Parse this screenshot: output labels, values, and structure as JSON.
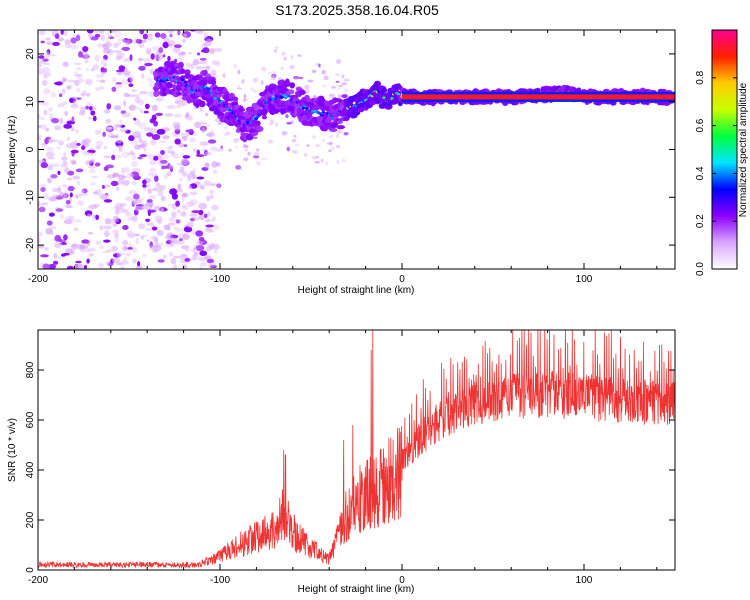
{
  "figure_title": "S173.2025.358.16.04.R05",
  "chart_data": [
    {
      "type": "heatmap",
      "title": "S173.2025.358.16.04.R05",
      "xlabel": "Height of straight line (km)",
      "ylabel": "Frequency (Hz)",
      "xlim": [
        -200,
        150
      ],
      "ylim": [
        -25,
        25
      ],
      "xticks": [
        -200,
        -100,
        0,
        100
      ],
      "yticks": [
        -20,
        -10,
        0,
        10,
        20
      ],
      "colorbar": {
        "label": "Normalized spectral amplitude",
        "range": [
          0,
          1
        ],
        "ticks": [
          0.0,
          0.2,
          0.4,
          0.6,
          0.8
        ],
        "tick_labels": [
          "0.0",
          "0.2",
          "0.4",
          "0.6",
          "0.8"
        ],
        "colors": [
          "#ffffff",
          "#d9a6ff",
          "#8a00ff",
          "#0000ff",
          "#00e5ff",
          "#00ff40",
          "#c8ff00",
          "#ffcc00",
          "#ff2000",
          "#ff0090"
        ]
      },
      "ridge": {
        "x": [
          -135,
          -128,
          -120,
          -115,
          -108,
          -100,
          -93,
          -86,
          -80,
          -74,
          -68,
          -62,
          -56,
          -50,
          -44,
          -38,
          -32,
          -26,
          -20,
          -14,
          -8,
          -2,
          0,
          20,
          60,
          80,
          90,
          100,
          150
        ],
        "freq_hz": [
          14,
          15,
          14.5,
          12,
          13,
          10,
          8,
          5,
          6.5,
          10,
          11,
          11,
          9.5,
          8,
          7.5,
          7,
          8,
          9,
          10.5,
          12,
          10,
          12,
          11,
          11,
          11,
          11.5,
          12,
          11,
          11
        ]
      },
      "steady_line": {
        "x_start": 0,
        "x_end": 150,
        "freq_hz": 11
      }
    },
    {
      "type": "line",
      "title": "",
      "xlabel": "Height of straight line (km)",
      "ylabel": "SNR (10 * v/v)",
      "xlim": [
        -200,
        150
      ],
      "ylim": [
        0,
        960
      ],
      "xticks": [
        -200,
        -100,
        0,
        100
      ],
      "yticks": [
        0,
        200,
        400,
        600,
        800
      ],
      "series": [
        {
          "name": "SNR",
          "color": "#ee3333",
          "envelope_x": [
            -200,
            -160,
            -120,
            -110,
            -100,
            -90,
            -80,
            -70,
            -65,
            -62,
            -58,
            -50,
            -45,
            -40,
            -30,
            -25,
            -20,
            -15,
            -10,
            -5,
            0,
            10,
            20,
            30,
            40,
            50,
            60,
            80,
            100,
            120,
            150
          ],
          "envelope_y": [
            20,
            20,
            20,
            30,
            60,
            110,
            150,
            180,
            250,
            200,
            150,
            100,
            70,
            50,
            250,
            300,
            350,
            330,
            380,
            420,
            460,
            570,
            640,
            690,
            720,
            740,
            750,
            760,
            750,
            730,
            720
          ],
          "spikes_x": [
            -65,
            -64,
            -32,
            -27,
            -17,
            -16
          ],
          "spikes_y": [
            480,
            460,
            520,
            580,
            880,
            960
          ]
        }
      ]
    }
  ]
}
